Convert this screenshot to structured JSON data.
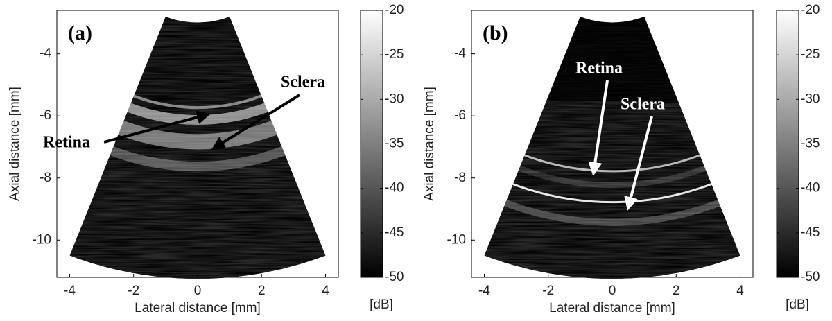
{
  "chart_data": [
    {
      "type": "image",
      "panel_label": "(a)",
      "xlabel": "Lateral distance [mm]",
      "ylabel": "Axial distance [mm]",
      "xlim": [
        -4.4,
        4.4
      ],
      "xticks": [
        -4,
        -2,
        0,
        2,
        4
      ],
      "ylim": [
        -11.2,
        -2.6
      ],
      "yticks": [
        -10,
        -8,
        -6,
        -4
      ],
      "colorbar": {
        "label": "[dB]",
        "lim": [
          -50,
          -20
        ],
        "ticks": [
          -50,
          -45,
          -40,
          -35,
          -30,
          -25,
          -20
        ]
      },
      "annotations": [
        {
          "text": "Retina"
        },
        {
          "text": "Sclera"
        }
      ]
    },
    {
      "type": "image",
      "panel_label": "(b)",
      "xlabel": "Lateral distance [mm]",
      "ylabel": "Axial distance [mm]",
      "xlim": [
        -4.4,
        4.4
      ],
      "xticks": [
        -4,
        -2,
        0,
        2,
        4
      ],
      "ylim": [
        -11.2,
        -2.6
      ],
      "yticks": [
        -10,
        -8,
        -6,
        -4
      ],
      "colorbar": {
        "label": "[dB]",
        "lim": [
          -50,
          -20
        ],
        "ticks": [
          -50,
          -45,
          -40,
          -35,
          -30,
          -25,
          -20
        ]
      },
      "annotations": [
        {
          "text": "Retina"
        },
        {
          "text": "Sclera"
        }
      ]
    }
  ]
}
